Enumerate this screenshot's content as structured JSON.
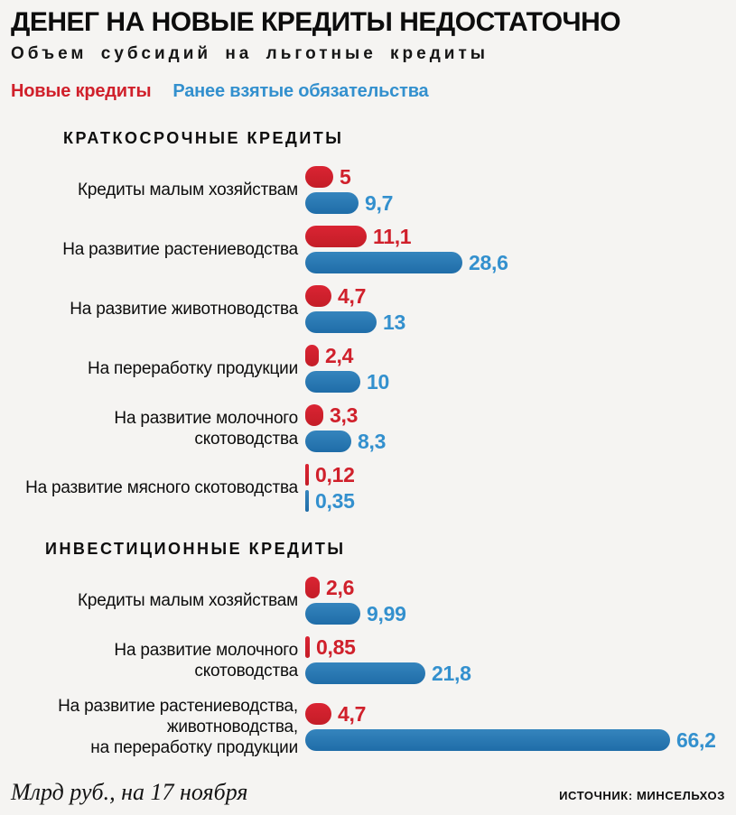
{
  "page": {
    "background": "#f5f4f2"
  },
  "colors": {
    "new": "#d0202b",
    "prior_bar": "#2a79b3",
    "prior_text": "#3390ce"
  },
  "header": {
    "title": "ДЕНЕГ НА НОВЫЕ КРЕДИТЫ НЕДОСТАТОЧНО",
    "subtitle": "Объем субсидий на льготные кредиты"
  },
  "legend": {
    "new_label": "Новые кредиты",
    "prior_label": "Ранее взятые обязательства"
  },
  "chart_data": {
    "type": "bar",
    "orientation": "horizontal",
    "unit": "млрд руб.",
    "series_names": [
      "Новые кредиты",
      "Ранее взятые обязательства"
    ],
    "value_axis_range": [
      0,
      66.2
    ],
    "grid": false,
    "legend_position": "top-left",
    "sections": [
      {
        "title": "КРАТКОСРОЧНЫЕ КРЕДИТЫ",
        "rows": [
          {
            "label": "Кредиты малым хозяйствам",
            "new": 5,
            "new_display": "5",
            "prior": 9.7,
            "prior_display": "9,7"
          },
          {
            "label": "На развитие растениеводства",
            "new": 11.1,
            "new_display": "11,1",
            "prior": 28.6,
            "prior_display": "28,6"
          },
          {
            "label": "На развитие животноводства",
            "new": 4.7,
            "new_display": "4,7",
            "prior": 13,
            "prior_display": "13"
          },
          {
            "label": "На переработку продукции",
            "new": 2.4,
            "new_display": "2,4",
            "prior": 10,
            "prior_display": "10"
          },
          {
            "label": "На развитие молочного скотоводства",
            "new": 3.3,
            "new_display": "3,3",
            "prior": 8.3,
            "prior_display": "8,3"
          },
          {
            "label": "На развитие мясного скотоводства",
            "new": 0.12,
            "new_display": "0,12",
            "prior": 0.35,
            "prior_display": "0,35"
          }
        ]
      },
      {
        "title": "ИНВЕСТИЦИОННЫЕ КРЕДИТЫ",
        "rows": [
          {
            "label": "Кредиты малым хозяйствам",
            "new": 2.6,
            "new_display": "2,6",
            "prior": 9.99,
            "prior_display": "9,99"
          },
          {
            "label": "На развитие молочного скотоводства",
            "new": 0.85,
            "new_display": "0,85",
            "prior": 21.8,
            "prior_display": "21,8"
          },
          {
            "label": "На развитие растениеводства,\nживотноводства,\nна переработку продукции",
            "new": 4.7,
            "new_display": "4,7",
            "prior": 66.2,
            "prior_display": "66,2"
          }
        ]
      }
    ]
  },
  "footer": {
    "note": "Млрд руб., на 17 ноября",
    "source": "ИСТОЧНИК: МИНСЕЛЬХОЗ"
  }
}
